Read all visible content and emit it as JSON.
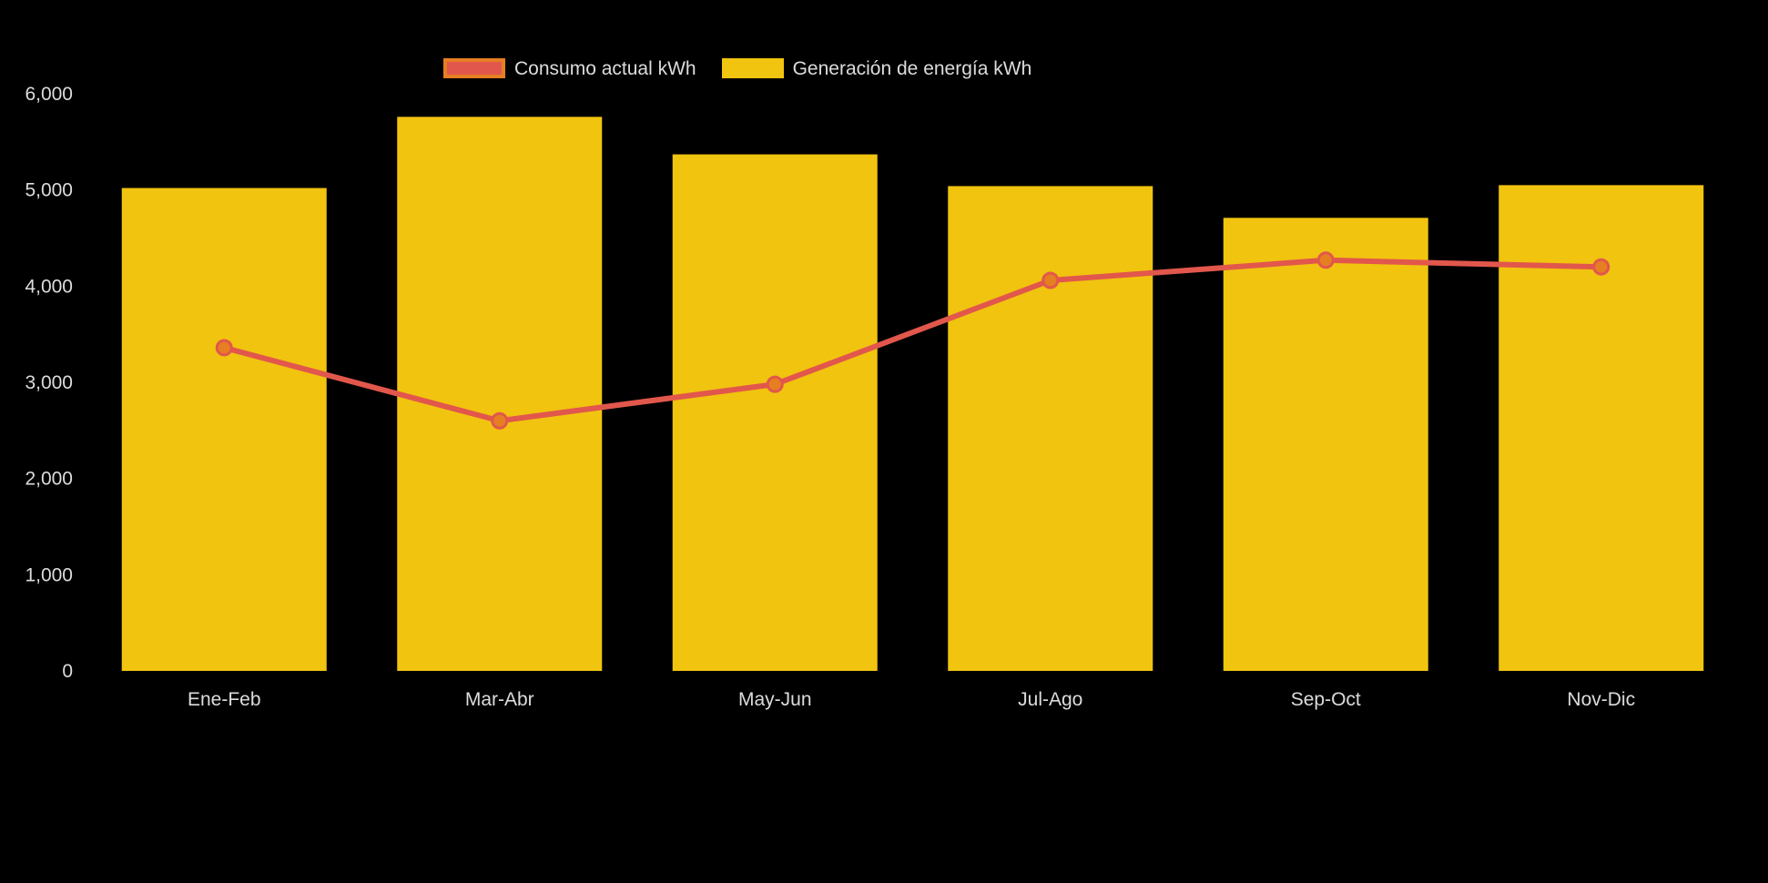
{
  "chart_data": {
    "type": "bar",
    "subtype": "bar-with-line-overlay",
    "categories": [
      "Ene-Feb",
      "Mar-Abr",
      "May-Jun",
      "Jul-Ago",
      "Sep-Oct",
      "Nov-Dic"
    ],
    "series": [
      {
        "name": "Consumo actual kWh",
        "kind": "line",
        "values": [
          3360,
          2600,
          2980,
          4060,
          4270,
          4200
        ],
        "line_color": "#E2574C",
        "marker_fill": "#E67E22",
        "marker_stroke": "#E2574C"
      },
      {
        "name": "Generación de energía kWh",
        "kind": "bar",
        "values": [
          5020,
          5760,
          5370,
          5040,
          4710,
          5050
        ],
        "bar_color": "#F1C40F"
      }
    ],
    "title": "",
    "xlabel": "",
    "ylabel": "",
    "ylim": [
      0,
      6000
    ],
    "ytick_step": 1000,
    "ytick_labels": [
      "0",
      "1,000",
      "2,000",
      "3,000",
      "4,000",
      "5,000",
      "6,000"
    ],
    "grid": false,
    "legend_position": "top",
    "colors": {
      "background": "#000000",
      "text": "#DCDCDC",
      "bar": "#F1C40F",
      "line": "#E2574C",
      "marker": "#E67E22"
    }
  }
}
